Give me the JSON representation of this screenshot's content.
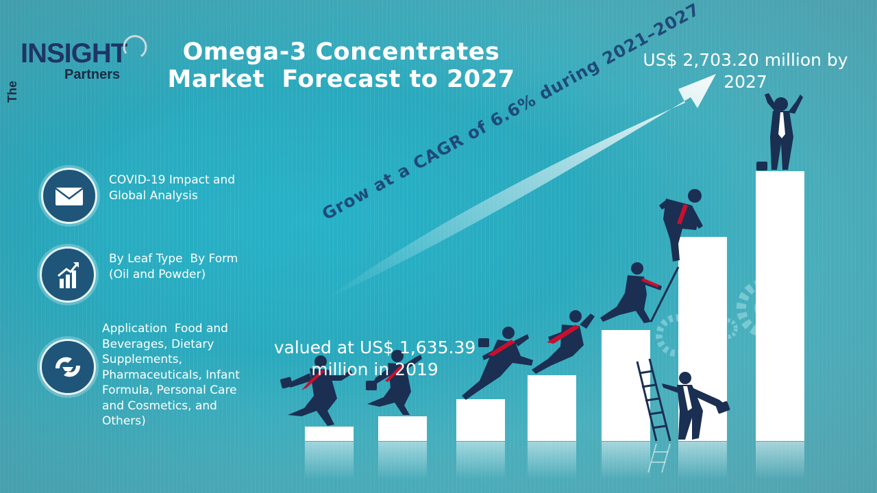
{
  "logo": {
    "the": "The",
    "insight": "INSIGHT",
    "partners": "Partners"
  },
  "title": {
    "line1": "Omega-3 Concentrates",
    "line2": "Market  Forecast to 2027"
  },
  "forecast": {
    "value_2027": "US$ 2,703.20 million by 2027",
    "value_2019": "valued at US$ 1,635.39 million in 2019"
  },
  "cagr": "Grow at a CAGR of 6.6% during 2021–2027",
  "features": [
    {
      "icon": "envelope-icon",
      "text": "COVID-19 Impact and\nGlobal Analysis"
    },
    {
      "icon": "growth-chart-icon",
      "text": "By Leaf Type  By Form\n(Oil and Powder)"
    },
    {
      "icon": "handshake-icon",
      "text": "Application  Food and\nBeverages, Dietary\nSupplements,\nPharmaceuticals, Infant\nFormula, Personal Care\nand Cosmetics, and\nOthers)"
    }
  ],
  "colors": {
    "accent_navy": "#1f3566",
    "icon_circle": "#1f5579",
    "cagr_text": "#1f4a78",
    "tie_red": "#c8102e"
  }
}
